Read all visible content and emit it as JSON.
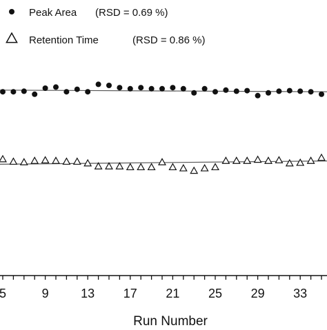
{
  "chart_data": {
    "type": "scatter",
    "xlabel": "Run Number",
    "ylabel": "",
    "xlim": [
      5,
      35
    ],
    "ylim": [
      0,
      100
    ],
    "x_ticks": [
      5,
      9,
      13,
      17,
      21,
      25,
      29,
      33
    ],
    "legend": {
      "placement": "top-left",
      "entries": [
        {
          "label": "Peak Area",
          "note": "(RSD = 0.69 %)",
          "marker": "filled-circle"
        },
        {
          "label": "Retention Time",
          "note": "(RSD = 0.86 %)",
          "marker": "open-triangle"
        }
      ]
    },
    "series": [
      {
        "name": "Peak Area",
        "marker": "filled-circle",
        "color": "#111111",
        "x": [
          5,
          6,
          7,
          8,
          9,
          10,
          11,
          12,
          13,
          14,
          15,
          16,
          17,
          18,
          19,
          20,
          21,
          22,
          23,
          24,
          25,
          26,
          27,
          28,
          29,
          30,
          31,
          32,
          33,
          34,
          35
        ],
        "y": [
          66.7,
          66.7,
          66.9,
          65.8,
          68.0,
          68.4,
          66.7,
          67.6,
          66.7,
          69.4,
          69.0,
          68.2,
          67.8,
          68.2,
          67.8,
          67.8,
          68.2,
          67.8,
          66.3,
          67.8,
          66.7,
          67.3,
          66.9,
          67.1,
          65.3,
          66.3,
          66.9,
          67.1,
          66.9,
          66.7,
          65.8
        ],
        "trend": [
          67.3,
          66.7
        ]
      },
      {
        "name": "Retention Time",
        "marker": "open-triangle",
        "color": "#111111",
        "x": [
          5,
          6,
          7,
          8,
          9,
          10,
          11,
          12,
          13,
          14,
          15,
          16,
          17,
          18,
          19,
          20,
          21,
          22,
          23,
          24,
          25,
          26,
          27,
          28,
          29,
          30,
          31,
          32,
          33,
          34,
          35
        ],
        "y": [
          42.2,
          41.3,
          41.1,
          41.6,
          41.8,
          41.6,
          41.3,
          41.3,
          40.7,
          39.6,
          39.6,
          39.6,
          39.3,
          39.3,
          39.3,
          41.1,
          39.3,
          38.9,
          38.0,
          38.9,
          39.3,
          41.6,
          41.6,
          41.6,
          42.0,
          41.6,
          41.8,
          40.7,
          40.9,
          41.6,
          42.7
        ],
        "trend": [
          40.4,
          41.6
        ]
      }
    ],
    "grid": false
  }
}
